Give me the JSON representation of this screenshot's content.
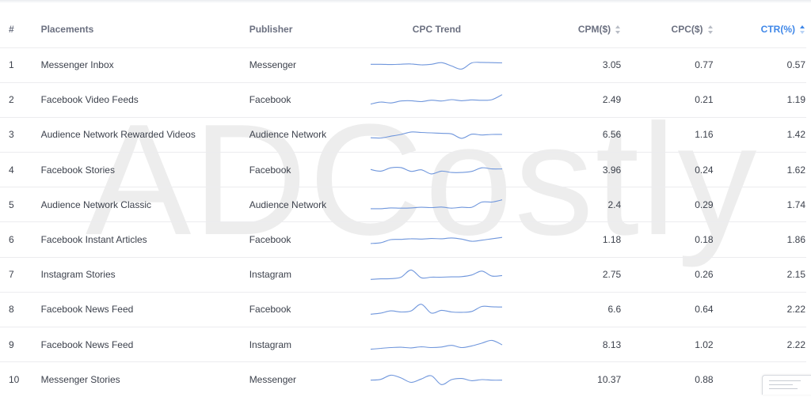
{
  "watermark": "ADCostly",
  "columns": {
    "index": "#",
    "placements": "Placements",
    "publisher": "Publisher",
    "trend": "CPC Trend",
    "cpm": "CPM($)",
    "cpc": "CPC($)",
    "ctr": "CTR(%)"
  },
  "sort": {
    "active_column": "ctr",
    "sort_icon": "sort-icon"
  },
  "rows": [
    {
      "index": "1",
      "placement": "Messenger Inbox",
      "publisher": "Messenger",
      "cpm": "3.05",
      "cpc": "0.77",
      "ctr": "0.57",
      "trend": [
        0.45,
        0.45,
        0.47,
        0.44,
        0.42,
        0.5,
        0.45,
        0.3,
        0.6,
        0.88,
        0.32,
        0.28,
        0.3,
        0.32
      ]
    },
    {
      "index": "2",
      "placement": "Facebook Video Feeds",
      "publisher": "Facebook",
      "cpm": "2.49",
      "cpc": "0.21",
      "ctr": "1.19",
      "trend": [
        0.9,
        0.72,
        0.8,
        0.62,
        0.6,
        0.68,
        0.55,
        0.62,
        0.5,
        0.6,
        0.52,
        0.56,
        0.5,
        0.05
      ]
    },
    {
      "index": "3",
      "placement": "Audience Network Rewarded Videos",
      "publisher": "Audience Network",
      "cpm": "6.56",
      "cpc": "1.16",
      "ctr": "1.42",
      "trend": [
        0.8,
        0.82,
        0.66,
        0.5,
        0.28,
        0.32,
        0.36,
        0.4,
        0.45,
        0.85,
        0.48,
        0.55,
        0.5,
        0.5
      ]
    },
    {
      "index": "4",
      "placement": "Facebook Stories",
      "publisher": "Facebook",
      "cpm": "3.96",
      "cpc": "0.24",
      "ctr": "1.62",
      "trend": [
        0.45,
        0.6,
        0.3,
        0.28,
        0.62,
        0.48,
        0.85,
        0.6,
        0.72,
        0.72,
        0.62,
        0.3,
        0.4,
        0.4
      ]
    },
    {
      "index": "5",
      "placement": "Audience Network Classic",
      "publisher": "Audience Network",
      "cpm": "2.4",
      "cpc": "0.29",
      "ctr": "1.74",
      "trend": [
        0.85,
        0.85,
        0.78,
        0.8,
        0.78,
        0.72,
        0.75,
        0.7,
        0.8,
        0.72,
        0.72,
        0.25,
        0.25,
        0.05
      ]
    },
    {
      "index": "6",
      "placement": "Facebook Instant Articles",
      "publisher": "Facebook",
      "cpm": "1.18",
      "cpc": "0.18",
      "ctr": "1.86",
      "trend": [
        0.85,
        0.78,
        0.5,
        0.48,
        0.42,
        0.45,
        0.4,
        0.42,
        0.35,
        0.45,
        0.65,
        0.55,
        0.42,
        0.3
      ]
    },
    {
      "index": "7",
      "placement": "Instagram Stories",
      "publisher": "Instagram",
      "cpm": "2.75",
      "cpc": "0.26",
      "ctr": "2.15",
      "trend": [
        0.95,
        0.9,
        0.88,
        0.75,
        0.1,
        0.8,
        0.75,
        0.75,
        0.72,
        0.7,
        0.55,
        0.2,
        0.65,
        0.6
      ]
    },
    {
      "index": "8",
      "placement": "Facebook News Feed",
      "publisher": "Facebook",
      "cpm": "6.6",
      "cpc": "0.64",
      "ctr": "2.22",
      "trend": [
        0.95,
        0.85,
        0.65,
        0.75,
        0.65,
        0.05,
        0.85,
        0.6,
        0.75,
        0.78,
        0.7,
        0.25,
        0.28,
        0.3
      ]
    },
    {
      "index": "9",
      "placement": "Facebook News Feed",
      "publisher": "Instagram",
      "cpm": "8.13",
      "cpc": "1.02",
      "ctr": "2.22",
      "trend": [
        0.9,
        0.82,
        0.75,
        0.72,
        0.78,
        0.68,
        0.75,
        0.7,
        0.55,
        0.75,
        0.6,
        0.35,
        0.1,
        0.5
      ]
    },
    {
      "index": "10",
      "placement": "Messenger Stories",
      "publisher": "Messenger",
      "cpm": "10.37",
      "cpc": "0.88",
      "ctr": "",
      "trend": [
        0.55,
        0.48,
        0.1,
        0.35,
        0.75,
        0.45,
        0.15,
        0.95,
        0.5,
        0.4,
        0.6,
        0.5,
        0.55,
        0.55
      ]
    }
  ]
}
